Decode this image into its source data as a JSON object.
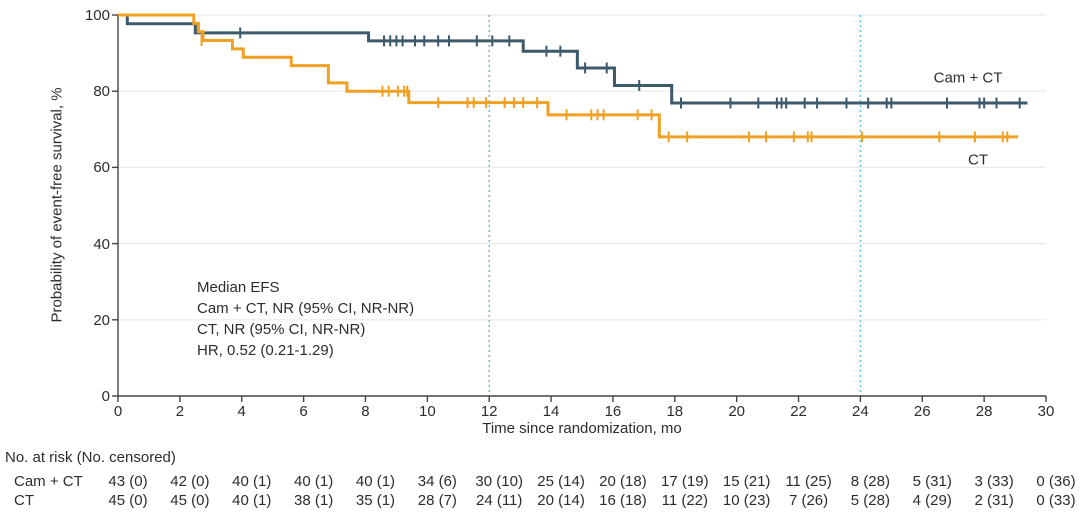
{
  "chart_data": {
    "type": "line",
    "subtype": "kaplan-meier-step",
    "xlabel": "Time since randomization, mo",
    "ylabel": "Probability of event-free survival, %",
    "xlim": [
      0,
      30
    ],
    "ylim": [
      0,
      100
    ],
    "x_ticks": [
      0,
      2,
      4,
      6,
      8,
      10,
      12,
      14,
      16,
      18,
      20,
      22,
      24,
      26,
      28,
      30
    ],
    "y_ticks": [
      0,
      20,
      40,
      60,
      80,
      100
    ],
    "grid": "horizontal-light",
    "reference_lines_x": [
      12,
      24
    ],
    "reference_line_color": "#67c7e9",
    "annotation": [
      "Median EFS",
      "Cam + CT, NR (95% CI, NR-NR)",
      "CT, NR (95% CI, NR-NR)",
      "HR, 0.52 (0.21-1.29)"
    ],
    "series": [
      {
        "name": "Cam + CT",
        "color": "#3d5a6b",
        "steps": [
          [
            0,
            100
          ],
          [
            0.3,
            97.7
          ],
          [
            2.5,
            95.3
          ],
          [
            8.1,
            93.2
          ],
          [
            13.1,
            90.5
          ],
          [
            14.85,
            86.1
          ],
          [
            16.05,
            81.5
          ],
          [
            17.9,
            76.9
          ]
        ],
        "end_t": 29.4,
        "censors": [
          [
            3.95,
            95.3
          ],
          [
            8.6,
            93.2
          ],
          [
            8.8,
            93.2
          ],
          [
            9.0,
            93.2
          ],
          [
            9.2,
            93.2
          ],
          [
            9.6,
            93.2
          ],
          [
            9.9,
            93.2
          ],
          [
            10.35,
            93.2
          ],
          [
            10.7,
            93.2
          ],
          [
            11.6,
            93.2
          ],
          [
            12.1,
            93.2
          ],
          [
            12.65,
            93.2
          ],
          [
            13.85,
            90.5
          ],
          [
            14.3,
            90.5
          ],
          [
            15.1,
            86.1
          ],
          [
            15.8,
            86.1
          ],
          [
            16.85,
            81.5
          ],
          [
            18.2,
            76.9
          ],
          [
            19.8,
            76.9
          ],
          [
            20.7,
            76.9
          ],
          [
            21.3,
            76.9
          ],
          [
            21.45,
            76.9
          ],
          [
            21.6,
            76.9
          ],
          [
            22.2,
            76.9
          ],
          [
            22.6,
            76.9
          ],
          [
            23.55,
            76.9
          ],
          [
            24.25,
            76.9
          ],
          [
            24.85,
            76.9
          ],
          [
            25.0,
            76.9
          ],
          [
            26.8,
            76.9
          ],
          [
            27.85,
            76.9
          ],
          [
            28.0,
            76.9
          ],
          [
            28.4,
            76.9
          ],
          [
            29.15,
            76.9
          ]
        ],
        "label_pos": [
          968,
          78
        ]
      },
      {
        "name": "CT",
        "color": "#f0a125",
        "steps": [
          [
            0,
            100
          ],
          [
            2.45,
            97.8
          ],
          [
            2.6,
            95.6
          ],
          [
            2.75,
            93.3
          ],
          [
            3.7,
            91.1
          ],
          [
            4.05,
            88.9
          ],
          [
            5.6,
            86.7
          ],
          [
            6.8,
            82.2
          ],
          [
            7.4,
            80.0
          ],
          [
            9.4,
            77.0
          ],
          [
            13.9,
            73.8
          ],
          [
            17.5,
            68.0
          ]
        ],
        "end_t": 29.1,
        "censors": [
          [
            2.7,
            93.3
          ],
          [
            8.55,
            80.0
          ],
          [
            8.75,
            80.0
          ],
          [
            9.05,
            80.0
          ],
          [
            9.25,
            80.0
          ],
          [
            9.35,
            80.0
          ],
          [
            10.35,
            77.0
          ],
          [
            11.3,
            77.0
          ],
          [
            11.5,
            77.0
          ],
          [
            11.9,
            77.0
          ],
          [
            12.5,
            77.0
          ],
          [
            12.8,
            77.0
          ],
          [
            13.1,
            77.0
          ],
          [
            13.55,
            77.0
          ],
          [
            14.5,
            73.8
          ],
          [
            15.3,
            73.8
          ],
          [
            15.5,
            73.8
          ],
          [
            15.7,
            73.8
          ],
          [
            16.8,
            73.8
          ],
          [
            17.25,
            73.8
          ],
          [
            17.8,
            68.0
          ],
          [
            18.4,
            68.0
          ],
          [
            20.4,
            68.0
          ],
          [
            20.95,
            68.0
          ],
          [
            21.85,
            68.0
          ],
          [
            22.3,
            68.0
          ],
          [
            22.42,
            68.0
          ],
          [
            24.05,
            68.0
          ],
          [
            26.55,
            68.0
          ],
          [
            27.7,
            68.0
          ],
          [
            28.6,
            68.0
          ],
          [
            28.75,
            68.0
          ]
        ],
        "label_pos": [
          978,
          160
        ]
      }
    ]
  },
  "risk_table": {
    "title": "No. at risk (No. censored)",
    "time_points": [
      0,
      2,
      4,
      6,
      8,
      10,
      12,
      14,
      16,
      18,
      20,
      22,
      24,
      26,
      28,
      30
    ],
    "rows": [
      {
        "label": "Cam + CT",
        "values": [
          "43 (0)",
          "42 (0)",
          "40 (1)",
          "40 (1)",
          "40 (1)",
          "34 (6)",
          "30 (10)",
          "25 (14)",
          "20 (18)",
          "17 (19)",
          "15 (21)",
          "11 (25)",
          "8 (28)",
          "5 (31)",
          "3 (33)",
          "0 (36)"
        ]
      },
      {
        "label": "CT",
        "values": [
          "45 (0)",
          "45 (0)",
          "40 (1)",
          "38 (1)",
          "35 (1)",
          "28 (7)",
          "24 (11)",
          "20 (14)",
          "16 (18)",
          "11 (22)",
          "10 (23)",
          "7 (26)",
          "5 (28)",
          "4 (29)",
          "2 (31)",
          "0 (33)"
        ]
      }
    ]
  },
  "style": {
    "grid_color": "#eaeaea",
    "axis_color": "#454545",
    "text_color": "#2d2d2d"
  }
}
